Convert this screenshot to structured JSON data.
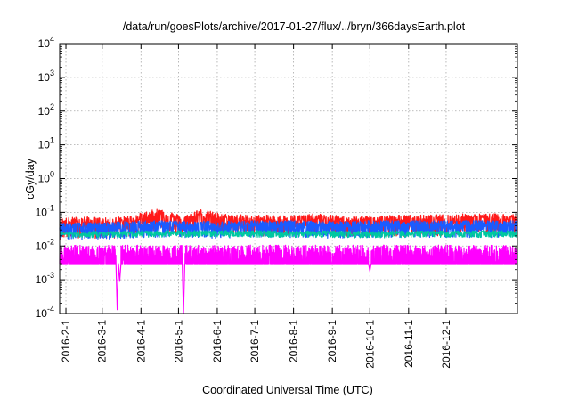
{
  "chart_data": {
    "type": "line",
    "title": "/data/run/goesPlots/archive/2017-01-27/flux/../bryn/366daysEarth.plot",
    "xlabel": "Coordinated Universal Time (UTC)",
    "ylabel": "cGy/day",
    "yscale": "log",
    "ylim": [
      0.0001,
      10000
    ],
    "xlim": [
      "2016-01-27",
      "2017-01-27"
    ],
    "grid": true,
    "x_ticks": [
      "2016-2-1",
      "2016-3-1",
      "2016-4-1",
      "2016-5-1",
      "2016-6-1",
      "2016-7-1",
      "2016-8-1",
      "2016-9-1",
      "2016-10-1",
      "2016-11-1",
      "2016-12-1"
    ],
    "y_ticks": [
      {
        "value": 0.0001,
        "mant": "10",
        "exp": "-4"
      },
      {
        "value": 0.001,
        "mant": "10",
        "exp": "-3"
      },
      {
        "value": 0.01,
        "mant": "10",
        "exp": "-2"
      },
      {
        "value": 0.1,
        "mant": "10",
        "exp": "-1"
      },
      {
        "value": 1,
        "mant": "10",
        "exp": "0"
      },
      {
        "value": 10,
        "mant": "10",
        "exp": "1"
      },
      {
        "value": 100,
        "mant": "10",
        "exp": "2"
      },
      {
        "value": 1000,
        "mant": "10",
        "exp": "3"
      },
      {
        "value": 10000,
        "mant": "10",
        "exp": "4"
      }
    ],
    "series": [
      {
        "color": "#ff1a1a",
        "values": [
          [
            "2016-01-27",
            0.045
          ],
          [
            "2016-02-15",
            0.05
          ],
          [
            "2016-03-05",
            0.045
          ],
          [
            "2016-03-25",
            0.055
          ],
          [
            "2016-04-17",
            0.09
          ],
          [
            "2016-05-05",
            0.05
          ],
          [
            "2016-05-17",
            0.085
          ],
          [
            "2016-06-05",
            0.06
          ],
          [
            "2016-07-01",
            0.055
          ],
          [
            "2016-08-01",
            0.055
          ],
          [
            "2016-08-20",
            0.06
          ],
          [
            "2016-09-15",
            0.05
          ],
          [
            "2016-10-15",
            0.055
          ],
          [
            "2016-11-15",
            0.055
          ],
          [
            "2016-12-15",
            0.06
          ],
          [
            "2017-01-27",
            0.06
          ]
        ]
      },
      {
        "color": "#1a5cff",
        "values": [
          [
            "2016-01-27",
            0.035
          ],
          [
            "2016-03-01",
            0.035
          ],
          [
            "2016-04-01",
            0.04
          ],
          [
            "2016-05-01",
            0.04
          ],
          [
            "2016-06-01",
            0.038
          ],
          [
            "2016-07-01",
            0.04
          ],
          [
            "2016-08-01",
            0.04
          ],
          [
            "2016-09-01",
            0.038
          ],
          [
            "2016-10-01",
            0.04
          ],
          [
            "2016-11-01",
            0.04
          ],
          [
            "2016-12-01",
            0.04
          ],
          [
            "2017-01-27",
            0.04
          ]
        ]
      },
      {
        "color": "#00c8a0",
        "values": [
          [
            "2016-01-27",
            0.022
          ],
          [
            "2016-04-01",
            0.024
          ],
          [
            "2016-07-01",
            0.024
          ],
          [
            "2016-10-01",
            0.023
          ],
          [
            "2017-01-27",
            0.024
          ]
        ]
      },
      {
        "color": "#ff00ff",
        "values": [
          [
            "2016-01-27",
            0.003
          ],
          [
            "2016-03-12",
            0.003
          ],
          [
            "2016-03-13",
            0.00013
          ],
          [
            "2016-03-14",
            0.003
          ],
          [
            "2016-03-15",
            0.0009
          ],
          [
            "2016-03-16",
            0.003
          ],
          [
            "2016-05-04",
            0.003
          ],
          [
            "2016-05-05",
            0.0001
          ],
          [
            "2016-05-06",
            0.003
          ],
          [
            "2016-09-30",
            0.003
          ],
          [
            "2016-10-01",
            0.0018
          ],
          [
            "2016-10-02",
            0.003
          ],
          [
            "2017-01-27",
            0.003
          ]
        ]
      }
    ]
  }
}
